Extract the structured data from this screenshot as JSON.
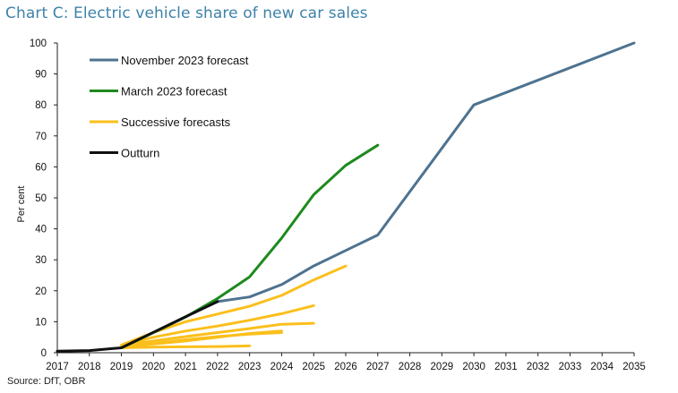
{
  "chart_data": {
    "type": "line",
    "title": "Chart C: Electric vehicle share of new car sales",
    "xlabel": "",
    "ylabel": "Per cent",
    "source": "Source: DfT, OBR",
    "xlim": [
      2017,
      2035
    ],
    "ylim": [
      0,
      100
    ],
    "xticks": [
      "2017",
      "2018",
      "2019",
      "2020",
      "2021",
      "2022",
      "2023",
      "2024",
      "2025",
      "2026",
      "2027",
      "2028",
      "2029",
      "2030",
      "2031",
      "2032",
      "2033",
      "2034",
      "2035"
    ],
    "yticks": [
      "0",
      "10",
      "20",
      "30",
      "40",
      "50",
      "60",
      "70",
      "80",
      "90",
      "100"
    ],
    "grid": false,
    "legend_position": "top-left",
    "legend": [
      {
        "name": "November 2023 forecast",
        "color": "#4e7390"
      },
      {
        "name": "March 2023 forecast",
        "color": "#1e8a1e"
      },
      {
        "name": "Successive forecasts",
        "color": "#fbbf1c"
      },
      {
        "name": "Outturn",
        "color": "#111111"
      }
    ],
    "series": [
      {
        "name": "Successive forecasts",
        "kind": "successive",
        "color": "#fbbf1c",
        "points": [
          [
            2019,
            1.6
          ],
          [
            2020,
            1.8
          ],
          [
            2021,
            1.9
          ],
          [
            2022,
            2.0
          ],
          [
            2023,
            2.2
          ]
        ]
      },
      {
        "name": "Successive forecasts",
        "kind": "successive",
        "color": "#fbbf1c",
        "points": [
          [
            2019,
            1.8
          ],
          [
            2020,
            2.8
          ],
          [
            2021,
            3.8
          ],
          [
            2022,
            5.0
          ],
          [
            2023,
            6.2
          ],
          [
            2024,
            7.0
          ]
        ]
      },
      {
        "name": "Successive forecasts",
        "kind": "successive",
        "color": "#fbbf1c",
        "points": [
          [
            2019,
            2.0
          ],
          [
            2020,
            3.0
          ],
          [
            2021,
            4.2
          ],
          [
            2022,
            5.2
          ],
          [
            2023,
            6.0
          ],
          [
            2024,
            6.5
          ]
        ]
      },
      {
        "name": "Successive forecasts",
        "kind": "successive",
        "color": "#fbbf1c",
        "points": [
          [
            2019,
            2.2
          ],
          [
            2020,
            3.8
          ],
          [
            2021,
            5.2
          ],
          [
            2022,
            6.5
          ],
          [
            2023,
            7.8
          ],
          [
            2024,
            9.2
          ],
          [
            2025,
            9.5
          ]
        ]
      },
      {
        "name": "Successive forecasts",
        "kind": "successive",
        "color": "#fbbf1c",
        "points": [
          [
            2019,
            2.4
          ],
          [
            2020,
            5.0
          ],
          [
            2021,
            7.0
          ],
          [
            2022,
            8.6
          ],
          [
            2023,
            10.5
          ],
          [
            2024,
            12.6
          ],
          [
            2025,
            15.2
          ]
        ]
      },
      {
        "name": "Successive forecasts",
        "kind": "successive",
        "color": "#fbbf1c",
        "points": [
          [
            2019,
            2.5
          ],
          [
            2020,
            6.5
          ],
          [
            2021,
            10.0
          ],
          [
            2022,
            12.5
          ],
          [
            2023,
            15.0
          ],
          [
            2024,
            18.5
          ],
          [
            2025,
            23.5
          ],
          [
            2026,
            28.0
          ]
        ]
      },
      {
        "name": "March 2023 forecast",
        "color": "#1e8a1e",
        "points": [
          [
            2019,
            1.6
          ],
          [
            2020,
            6.5
          ],
          [
            2021,
            11.5
          ],
          [
            2022,
            17.5
          ],
          [
            2023,
            24.5
          ],
          [
            2024,
            37.0
          ],
          [
            2025,
            51.0
          ],
          [
            2026,
            60.5
          ],
          [
            2027,
            67.0
          ]
        ]
      },
      {
        "name": "November 2023 forecast",
        "color": "#4e7390",
        "points": [
          [
            2022,
            16.5
          ],
          [
            2023,
            18.0
          ],
          [
            2024,
            22.0
          ],
          [
            2025,
            28.0
          ],
          [
            2026,
            33.0
          ],
          [
            2027,
            38.0
          ],
          [
            2030,
            80.0
          ],
          [
            2035,
            100.0
          ]
        ]
      },
      {
        "name": "Outturn",
        "color": "#111111",
        "points": [
          [
            2017,
            0.5
          ],
          [
            2018,
            0.7
          ],
          [
            2019,
            1.6
          ],
          [
            2020,
            6.6
          ],
          [
            2021,
            11.6
          ],
          [
            2022,
            16.5
          ]
        ]
      }
    ]
  }
}
